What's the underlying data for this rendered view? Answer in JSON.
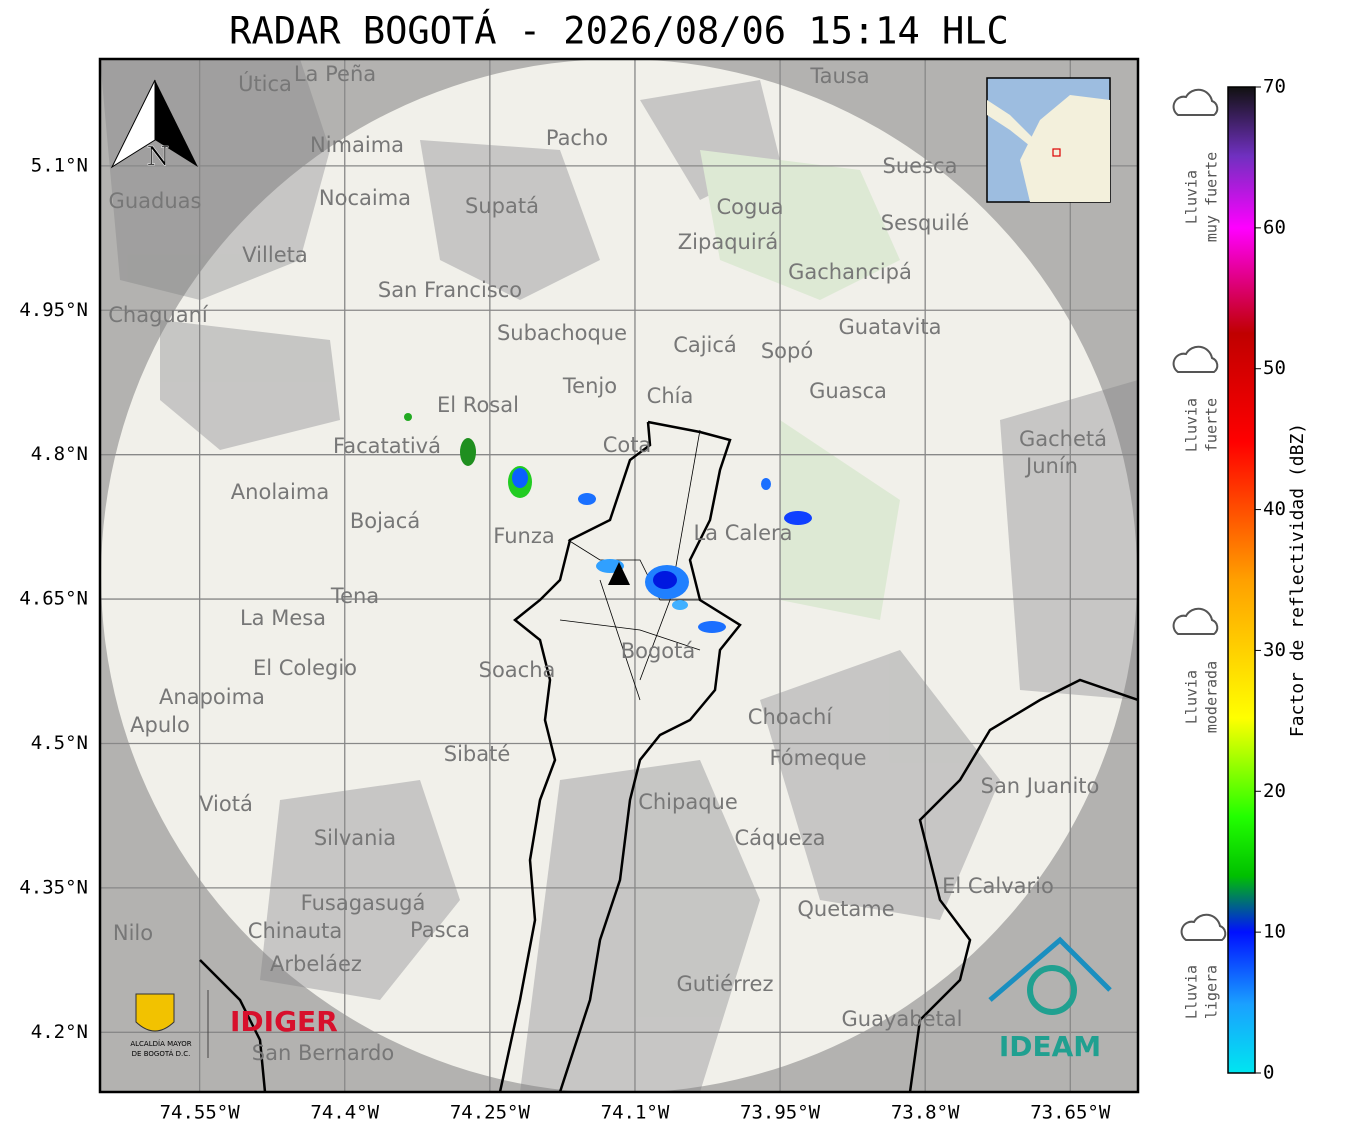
{
  "title": "RADAR BOGOTÁ - 2026/08/06 15:14 HLC",
  "map": {
    "lat_lim": [
      4.138,
      5.211
    ],
    "lon_lim": [
      -74.653,
      -73.58
    ],
    "lat_ticks": [
      {
        "value": 5.1,
        "label": "5.1°N"
      },
      {
        "value": 4.95,
        "label": "4.95°N"
      },
      {
        "value": 4.8,
        "label": "4.8°N"
      },
      {
        "value": 4.65,
        "label": "4.65°N"
      },
      {
        "value": 4.5,
        "label": "4.5°N"
      },
      {
        "value": 4.35,
        "label": "4.35°N"
      },
      {
        "value": 4.2,
        "label": "4.2°N"
      }
    ],
    "lon_ticks": [
      {
        "value": -74.55,
        "label": "74.55°W"
      },
      {
        "value": -74.4,
        "label": "74.4°W"
      },
      {
        "value": -74.25,
        "label": "74.25°W"
      },
      {
        "value": -74.1,
        "label": "74.1°W"
      },
      {
        "value": -73.95,
        "label": "73.95°W"
      },
      {
        "value": -73.8,
        "label": "73.8°W"
      },
      {
        "value": -73.65,
        "label": "73.65°W"
      }
    ],
    "places": [
      "La Peña",
      "Útica",
      "Tausa",
      "Pacho",
      "Nimaima",
      "Guaduas",
      "Nocaima",
      "Supatá",
      "Cogua",
      "Suesca",
      "Sesquilé",
      "Villeta",
      "Zipaquirá",
      "Gachancipá",
      "San Francisco",
      "Chaguaní",
      "Guatavita",
      "Subachoque",
      "Cajicá",
      "Sopó",
      "Tenjo",
      "Chía",
      "Guasca",
      "El Rosal",
      "Facatativá",
      "Cota",
      "Gachetá",
      "Junín",
      "Anolaima",
      "Bojacá",
      "Funza",
      "La Calera",
      "Tena",
      "La Mesa",
      "Bogotá",
      "El Colegio",
      "Soacha",
      "Anapoima",
      "Apulo",
      "Choachí",
      "Sibaté",
      "Fómeque",
      "San Juanito",
      "Chipaque",
      "Viotá",
      "Silvania",
      "Cáqueza",
      "El Calvario",
      "Fusagasugá",
      "Quetame",
      "Nilo",
      "Chinauta",
      "Pasca",
      "Arbeláez",
      "Gutiérrez",
      "Guayabetal",
      "San Bernardo"
    ]
  },
  "north_label": "N",
  "colorbar": {
    "label": "Factor de reflectividad (dBZ)",
    "lim": [
      0,
      70
    ],
    "ticks": [
      0,
      10,
      20,
      30,
      40,
      50,
      60,
      70
    ],
    "categories": [
      [
        "Lluvia",
        "muy fuerte"
      ],
      [
        "Lluvia",
        "fuerte"
      ],
      [
        "Lluvia",
        "moderada"
      ],
      [
        "Lluvia",
        "ligera"
      ]
    ]
  },
  "logos": {
    "alcaldia": [
      "ALCALDÍA MAYOR",
      "DE BOGOTÁ D.C."
    ],
    "idiger": "IDIGER",
    "ideam": "IDEAM"
  }
}
